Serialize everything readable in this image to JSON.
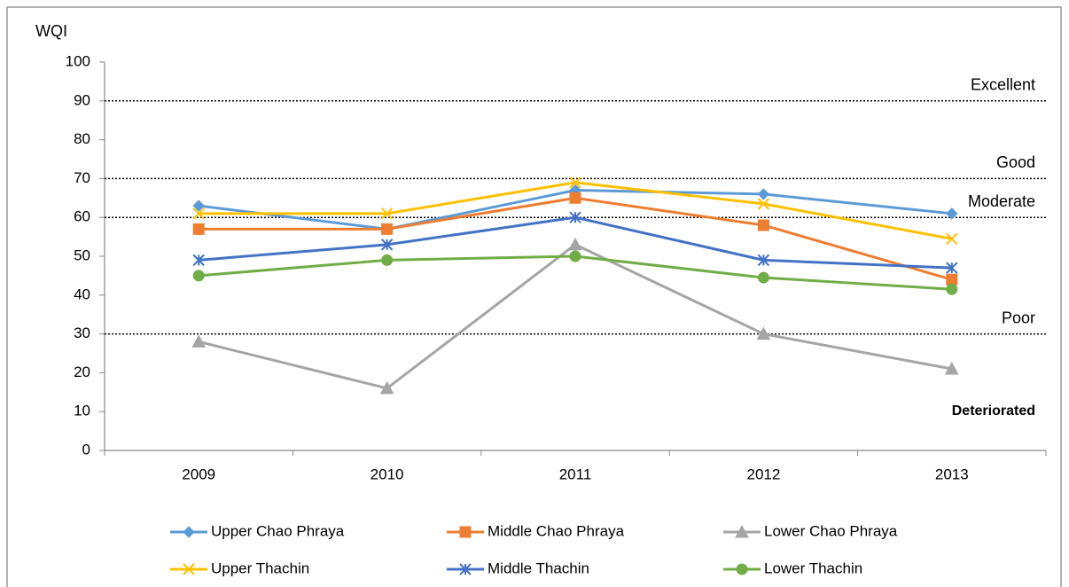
{
  "chart_data": {
    "type": "line",
    "y_label": "WQI",
    "categories": [
      "2009",
      "2010",
      "2011",
      "2012",
      "2013"
    ],
    "series": [
      {
        "name": "Upper Chao Phraya",
        "color": "#5b9bd5",
        "marker": "diamond",
        "values": [
          63,
          57,
          67,
          66,
          61
        ]
      },
      {
        "name": "Middle Chao Phraya",
        "color": "#ed7d31",
        "marker": "square",
        "values": [
          57,
          57,
          65,
          58,
          44
        ]
      },
      {
        "name": "Lower Chao Phraya",
        "color": "#a5a5a5",
        "marker": "triangle",
        "values": [
          28,
          16,
          53,
          30,
          21
        ]
      },
      {
        "name": "Upper Thachin",
        "color": "#ffc000",
        "marker": "x",
        "values": [
          61,
          61,
          69,
          63.5,
          54.5
        ]
      },
      {
        "name": "Middle Thachin",
        "color": "#4472c4",
        "marker": "star",
        "values": [
          49,
          53,
          60,
          49,
          47
        ]
      },
      {
        "name": "Lower Thachin",
        "color": "#70ad47",
        "marker": "circle",
        "values": [
          45,
          49,
          50,
          44.5,
          41.5
        ]
      }
    ],
    "thresholds": [
      {
        "value": 90,
        "label": "Excellent"
      },
      {
        "value": 70,
        "label": "Good"
      },
      {
        "value": 60,
        "label": "Moderate"
      },
      {
        "value": 30,
        "label": "Poor"
      }
    ],
    "bottom_zone_label": "Deteriorated",
    "ylim": [
      0,
      100
    ],
    "yticks": [
      0,
      10,
      20,
      30,
      40,
      50,
      60,
      70,
      80,
      90,
      100
    ]
  }
}
